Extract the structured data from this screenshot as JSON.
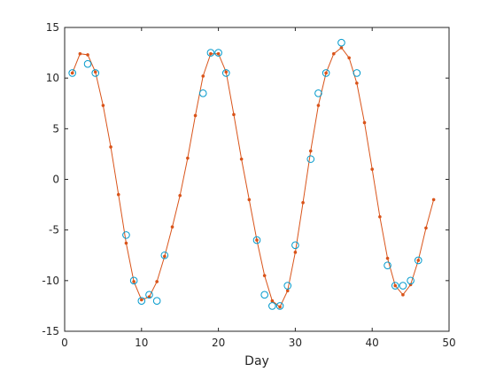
{
  "chart_data": {
    "type": "line",
    "xlabel": "Day",
    "ylabel": "",
    "title": "",
    "xlim": [
      0,
      50
    ],
    "ylim": [
      -15,
      15
    ],
    "xticks": [
      0,
      10,
      20,
      30,
      40,
      50
    ],
    "yticks": [
      -15,
      -10,
      -5,
      0,
      5,
      10,
      15
    ],
    "xtick_labels": [
      "0",
      "10",
      "20",
      "30",
      "40",
      "50"
    ],
    "ytick_labels": [
      "-15",
      "-10",
      "-5",
      "0",
      "5",
      "10",
      "15"
    ],
    "grid": false,
    "series": [
      {
        "style": "line-with-dots",
        "color": "#D95319",
        "x": [
          1,
          2,
          3,
          4,
          5,
          6,
          7,
          8,
          9,
          10,
          11,
          12,
          13,
          14,
          15,
          16,
          17,
          18,
          19,
          20,
          21,
          22,
          23,
          24,
          25,
          26,
          27,
          28,
          29,
          30,
          31,
          32,
          33,
          34,
          35,
          36,
          37,
          38,
          39,
          40,
          41,
          42,
          43,
          44,
          45,
          46,
          47,
          48
        ],
        "y": [
          10.5,
          12.4,
          12.3,
          10.6,
          7.3,
          3.2,
          -1.5,
          -6.3,
          -10.1,
          -11.9,
          -11.6,
          -10.1,
          -7.6,
          -4.7,
          -1.6,
          2.1,
          6.3,
          10.2,
          12.4,
          12.4,
          10.6,
          6.4,
          2.0,
          -2.0,
          -6.0,
          -9.5,
          -12.0,
          -12.6,
          -11.0,
          -7.2,
          -2.3,
          2.8,
          7.3,
          10.5,
          12.4,
          13.0,
          12.0,
          9.5,
          5.6,
          1.0,
          -3.7,
          -7.8,
          -10.5,
          -11.4,
          -10.4,
          -8.0,
          -4.8,
          -2.0
        ]
      },
      {
        "style": "markers-circle",
        "color": "#0099CC",
        "x": [
          1,
          3,
          4,
          8,
          9,
          10,
          11,
          12,
          13,
          18,
          19,
          20,
          21,
          25,
          26,
          27,
          28,
          29,
          30,
          32,
          33,
          34,
          36,
          38,
          42,
          43,
          44,
          45,
          46
        ],
        "y": [
          10.5,
          11.4,
          10.5,
          -5.5,
          -10.0,
          -12.0,
          -11.4,
          -12.0,
          -7.5,
          8.5,
          12.5,
          12.5,
          10.5,
          -6.0,
          -11.4,
          -12.5,
          -12.5,
          -10.5,
          -6.5,
          2.0,
          8.5,
          10.5,
          13.5,
          10.5,
          -8.5,
          -10.5,
          -10.5,
          -10.0,
          -8.0
        ]
      }
    ]
  }
}
